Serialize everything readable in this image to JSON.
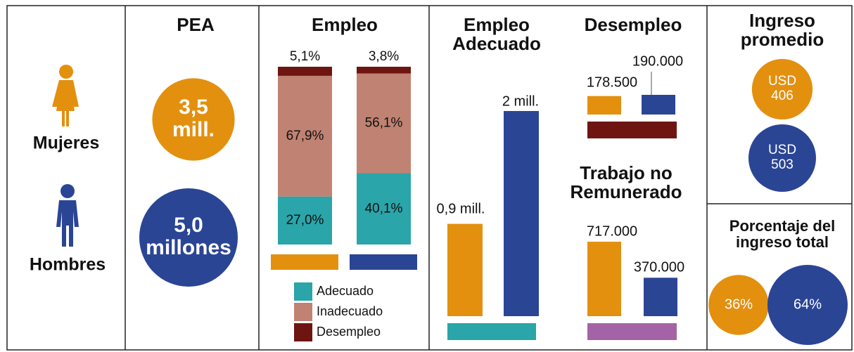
{
  "labels": {
    "women": "Mujeres",
    "men": "Hombres"
  },
  "chart_data": [
    {
      "type": "bubble",
      "title": "PEA",
      "values": [
        3.5,
        5.0
      ],
      "value_labels": [
        "3,5 mill.",
        "5,0 millones"
      ],
      "colors": [
        "#e3900f",
        "#2b4595"
      ]
    },
    {
      "type": "stacked_bar",
      "title": "Empleo",
      "category_colors": [
        "#e3900f",
        "#2b4595"
      ],
      "series": [
        {
          "name": "Adecuado",
          "color": "#2aa5a9",
          "values": [
            27.0,
            40.1
          ],
          "value_labels": [
            "27,0%",
            "40,1%"
          ]
        },
        {
          "name": "Inadecuado",
          "color": "#c08272",
          "values": [
            67.9,
            56.1
          ],
          "value_labels": [
            "67,9%",
            "56,1%"
          ]
        },
        {
          "name": "Desempleo",
          "color": "#6e1512",
          "values": [
            5.1,
            3.8
          ],
          "value_labels": [
            "5,1%",
            "3,8%"
          ]
        }
      ]
    },
    {
      "type": "bar",
      "title": "Empleo Adecuado",
      "values": [
        0.9,
        2
      ],
      "value_labels": [
        "0,9 mill.",
        "2 mill."
      ],
      "colors": [
        "#e3900f",
        "#2b4595"
      ],
      "base_color": "#2aa5a9"
    },
    {
      "type": "bar",
      "title": "Desempleo",
      "values": [
        178500,
        190000
      ],
      "value_labels": [
        "178.500",
        "190.000"
      ],
      "colors": [
        "#e3900f",
        "#2b4595"
      ],
      "base_color": "#6e1512"
    },
    {
      "type": "bar",
      "title": "Trabajo no Remunerado",
      "values": [
        717000,
        370000
      ],
      "value_labels": [
        "717.000",
        "370.000"
      ],
      "colors": [
        "#e3900f",
        "#2b4595"
      ],
      "base_color": "#a463a6"
    },
    {
      "type": "bubble",
      "title": "Ingreso promedio",
      "unit": "USD",
      "values": [
        406,
        503
      ],
      "colors": [
        "#e3900f",
        "#2b4595"
      ]
    },
    {
      "type": "bubble",
      "title": "Porcentaje del ingreso total",
      "values": [
        36,
        64
      ],
      "value_labels": [
        "36%",
        "64%"
      ],
      "colors": [
        "#e3900f",
        "#2b4595"
      ]
    }
  ]
}
